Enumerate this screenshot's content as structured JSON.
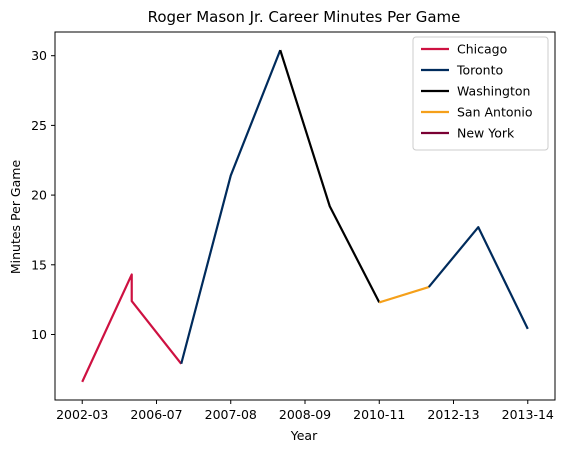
{
  "chart_data": {
    "type": "line",
    "title": "Roger Mason Jr. Career Minutes Per Game",
    "xlabel": "Year",
    "ylabel": "Minutes Per Game",
    "x_tick_labels": [
      "2002-03",
      "2006-07",
      "2007-08",
      "2008-09",
      "2010-11",
      "2012-13",
      "2013-14"
    ],
    "y_ticks": [
      10,
      15,
      20,
      25,
      30
    ],
    "ylim": [
      5.3,
      31.7
    ],
    "xlim": [
      -0.55,
      9.55
    ],
    "grid": false,
    "legend_position": "top-right",
    "series": [
      {
        "name": "Chicago",
        "color": "#ce1141",
        "points": [
          [
            0,
            6.6
          ],
          [
            1,
            14.3
          ],
          [
            1,
            12.4
          ],
          [
            2,
            7.9
          ]
        ]
      },
      {
        "name": "Toronto",
        "color": "#002b5c",
        "points": [
          [
            2,
            7.9
          ],
          [
            3,
            21.4
          ],
          [
            4,
            30.4
          ]
        ]
      },
      {
        "name": "Washington",
        "color": "#000000",
        "points": [
          [
            4,
            30.4
          ],
          [
            5,
            19.2
          ],
          [
            6,
            12.3
          ]
        ]
      },
      {
        "name": "San Antonio",
        "color": "#f5a01a",
        "points": [
          [
            6,
            12.3
          ],
          [
            7,
            13.4
          ]
        ]
      },
      {
        "name": "New York",
        "color": "#7a0033",
        "points": []
      },
      {
        "name": "Toronto",
        "color": "#002b5c",
        "legend": false,
        "points": [
          [
            7,
            13.4
          ],
          [
            8,
            17.7
          ],
          [
            9,
            10.4
          ]
        ]
      }
    ]
  }
}
